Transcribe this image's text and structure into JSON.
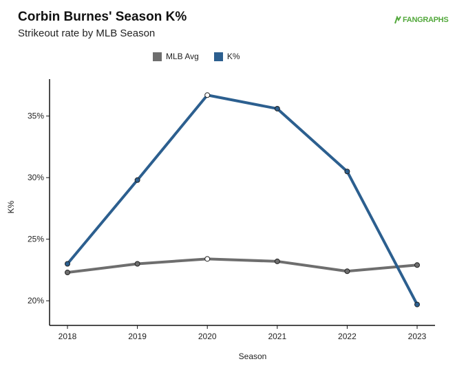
{
  "header": {
    "title": "Corbin Burnes' Season K%",
    "subtitle": "Strikeout rate by MLB Season",
    "brand": "FANGRAPHS",
    "brand_color": "#52a83b"
  },
  "legend": {
    "placement": "top-center",
    "items": [
      {
        "label": "MLB Avg",
        "color": "#6e6e6e"
      },
      {
        "label": "K%",
        "color": "#2c5f8f"
      }
    ]
  },
  "chart_data": {
    "type": "line",
    "xlabel": "Season",
    "ylabel": "K%",
    "x": [
      2018,
      2019,
      2020,
      2021,
      2022,
      2023
    ],
    "xticks": [
      "2018",
      "2019",
      "2020",
      "2021",
      "2022",
      "2023"
    ],
    "yticks": [
      {
        "value": 20,
        "label": "20%"
      },
      {
        "value": 25,
        "label": "25%"
      },
      {
        "value": 30,
        "label": "30%"
      },
      {
        "value": 35,
        "label": "35%"
      }
    ],
    "ylim": [
      18,
      38
    ],
    "grid": false,
    "series": [
      {
        "name": "MLB Avg",
        "color": "#6e6e6e",
        "values": [
          22.3,
          23.0,
          23.4,
          23.2,
          22.4,
          22.9
        ]
      },
      {
        "name": "K%",
        "color": "#2c5f8f",
        "values": [
          23.0,
          29.8,
          36.7,
          35.6,
          30.5,
          19.7
        ]
      }
    ],
    "highlight_x": 2020
  }
}
